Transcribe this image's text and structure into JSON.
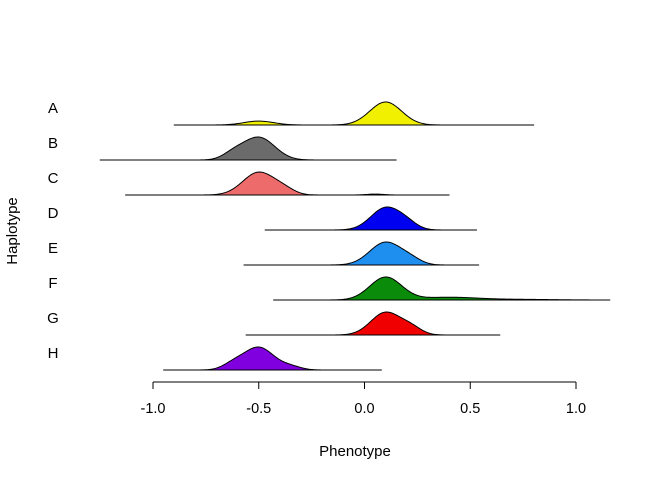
{
  "chart_data": {
    "type": "ridgeline",
    "title": "",
    "xlabel": "Phenotype",
    "ylabel": "Haplotype",
    "xlim": [
      -1.0,
      1.0
    ],
    "x_ticks": [
      -1.0,
      -0.5,
      0.0,
      0.5,
      1.0
    ],
    "x_tick_labels": [
      "-1.0",
      "-0.5",
      "0.0",
      "0.5",
      "1.0"
    ],
    "grid": false,
    "legend": "none",
    "series": [
      {
        "name": "A",
        "color": "#F0F000",
        "range": [
          -0.9,
          0.8
        ],
        "peaks": [
          {
            "mu": -0.5,
            "sd": 0.07,
            "h": 0.17
          },
          {
            "mu": 0.1,
            "sd": 0.075,
            "h": 1.0
          }
        ]
      },
      {
        "name": "B",
        "color": "#6B6B6B",
        "range": [
          -1.25,
          0.15
        ],
        "peaks": [
          {
            "mu": -0.5,
            "sd": 0.075,
            "h": 1.0
          },
          {
            "mu": -0.62,
            "sd": 0.05,
            "h": 0.25
          }
        ]
      },
      {
        "name": "C",
        "color": "#EE6B6B",
        "range": [
          -1.13,
          0.4
        ],
        "peaks": [
          {
            "mu": -0.5,
            "sd": 0.075,
            "h": 1.0
          },
          {
            "mu": -0.38,
            "sd": 0.05,
            "h": 0.2
          },
          {
            "mu": 0.05,
            "sd": 0.04,
            "h": 0.04
          }
        ]
      },
      {
        "name": "D",
        "color": "#0000F0",
        "range": [
          -0.47,
          0.53
        ],
        "peaks": [
          {
            "mu": 0.1,
            "sd": 0.07,
            "h": 1.0
          },
          {
            "mu": 0.2,
            "sd": 0.05,
            "h": 0.25
          }
        ]
      },
      {
        "name": "E",
        "color": "#1E8FEF",
        "range": [
          -0.57,
          0.54
        ],
        "peaks": [
          {
            "mu": 0.1,
            "sd": 0.075,
            "h": 1.0
          },
          {
            "mu": 0.22,
            "sd": 0.05,
            "h": 0.2
          }
        ]
      },
      {
        "name": "F",
        "color": "#0A8C0A",
        "range": [
          -0.43,
          1.16
        ],
        "peaks": [
          {
            "mu": 0.1,
            "sd": 0.075,
            "h": 1.0
          },
          {
            "mu": 0.4,
            "sd": 0.14,
            "h": 0.12
          },
          {
            "mu": 0.75,
            "sd": 0.15,
            "h": 0.025
          }
        ]
      },
      {
        "name": "G",
        "color": "#F00000",
        "range": [
          -0.56,
          0.64
        ],
        "peaks": [
          {
            "mu": 0.1,
            "sd": 0.07,
            "h": 1.0
          },
          {
            "mu": 0.22,
            "sd": 0.05,
            "h": 0.3
          }
        ]
      },
      {
        "name": "H",
        "color": "#8000E0",
        "range": [
          -0.95,
          0.08
        ],
        "peaks": [
          {
            "mu": -0.5,
            "sd": 0.07,
            "h": 1.0
          },
          {
            "mu": -0.62,
            "sd": 0.05,
            "h": 0.25
          },
          {
            "mu": -0.35,
            "sd": 0.05,
            "h": 0.15
          }
        ]
      }
    ]
  }
}
